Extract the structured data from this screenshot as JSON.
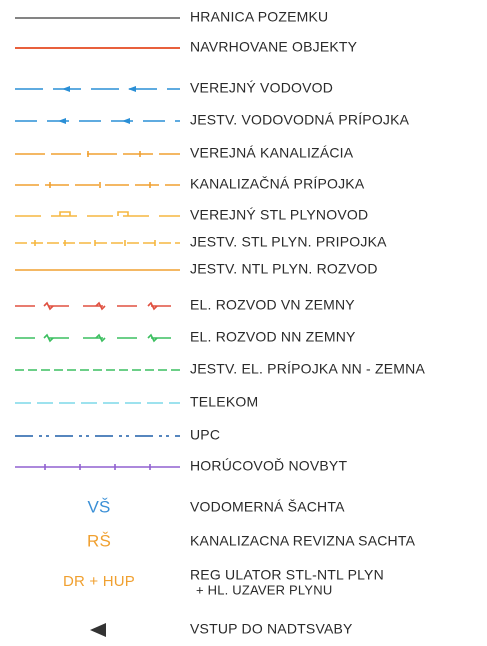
{
  "legend": {
    "items": [
      {
        "label": "HRANICA POZEMKU"
      },
      {
        "label": "NAVRHOVANE OBJEKTY"
      },
      {
        "label": "VEREJNÝ VODOVOD"
      },
      {
        "label": "JESTV. VODOVODNÁ PRÍPOJKA"
      },
      {
        "label": "VEREJNÁ KANALIZÁCIA"
      },
      {
        "label": "KANALIZAČNÁ PRÍPOJKA"
      },
      {
        "label": "VEREJNÝ STL PLYNOVOD"
      },
      {
        "label": "JESTV.  STL PLYN. PRIPOJKA"
      },
      {
        "label": "JESTV.  NTL PLYN. ROZVOD"
      },
      {
        "label": "EL. ROZVOD VN ZEMNY"
      },
      {
        "label": "EL. ROZVOD NN ZEMNY"
      },
      {
        "label": "JESTV. EL. PRÍPOJKA NN - ZEMNA"
      },
      {
        "label": "TELEKOM"
      },
      {
        "label": "UPC"
      },
      {
        "label": "HORÚCOVOĎ NOVBYT"
      },
      {
        "symbol": "VŠ",
        "label": "VODOMERNÁ ŠACHTA"
      },
      {
        "symbol": "RŠ",
        "label": "KANALIZACNA REVIZNA SACHTA"
      },
      {
        "symbol": "DR + HUP",
        "label_lines": [
          "REG ULATOR STL-NTL PLYN",
          "+ HL. UZAVER PLYNU"
        ]
      },
      {
        "label": "VSTUP DO NADTSVABY"
      }
    ]
  }
}
